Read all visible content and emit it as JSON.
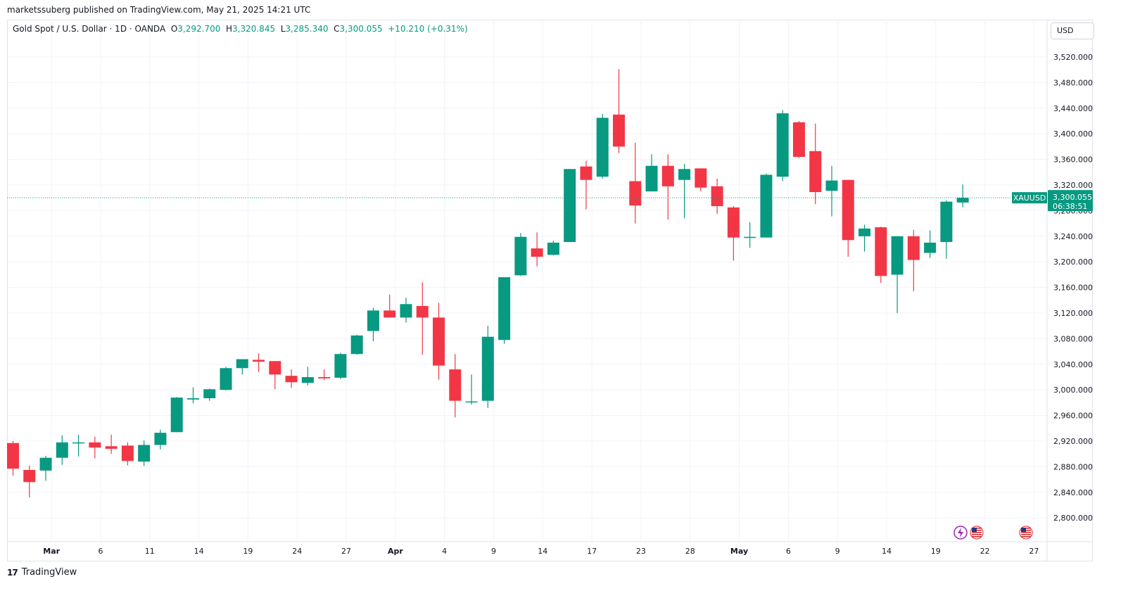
{
  "header": {
    "published": "marketssuberg published on TradingView.com, May 21, 2025 14:21 UTC"
  },
  "legend": {
    "symbol": "Gold Spot / U.S. Dollar · 1D · OANDA",
    "o_label": "O",
    "o_value": "3,292.700",
    "h_label": "H",
    "h_value": "3,320.845",
    "l_label": "L",
    "l_value": "3,285.340",
    "c_label": "C",
    "c_value": "3,300.055",
    "change": "+10.210 (+0.31%)"
  },
  "currency_button": "USD",
  "price_badge": {
    "symbol": "XAUUSD",
    "price": "3,300.055",
    "countdown": "06:38:51"
  },
  "brand": {
    "logo": "17",
    "name": "TradingView"
  },
  "colors": {
    "up": "#089981",
    "down": "#f23645",
    "grid": "#f0f3fa",
    "axis_text": "#131722"
  },
  "event_icons": [
    "lightning-icon",
    "us-flag-icon",
    "us-flag-icon"
  ],
  "chart_data": {
    "type": "candlestick",
    "ylim": [
      2770,
      3560
    ],
    "yticks": [
      "2,800.000",
      "2,840.000",
      "2,880.000",
      "2,920.000",
      "2,960.000",
      "3,000.000",
      "3,040.000",
      "3,080.000",
      "3,120.000",
      "3,160.000",
      "3,200.000",
      "3,240.000",
      "3,280.000",
      "3,320.000",
      "3,360.000",
      "3,400.000",
      "3,440.000",
      "3,480.000",
      "3,520.000"
    ],
    "ytick_values": [
      2800,
      2840,
      2880,
      2920,
      2960,
      3000,
      3040,
      3080,
      3120,
      3160,
      3200,
      3240,
      3280,
      3320,
      3360,
      3400,
      3440,
      3480,
      3520
    ],
    "xticks": [
      {
        "label": "Mar",
        "index": 2.35,
        "bold": true
      },
      {
        "label": "6",
        "index": 5.35
      },
      {
        "label": "11",
        "index": 8.35
      },
      {
        "label": "14",
        "index": 11.35
      },
      {
        "label": "19",
        "index": 14.35
      },
      {
        "label": "24",
        "index": 17.35
      },
      {
        "label": "27",
        "index": 20.35
      },
      {
        "label": "Apr",
        "index": 23.35,
        "bold": true
      },
      {
        "label": "4",
        "index": 26.35
      },
      {
        "label": "9",
        "index": 29.35
      },
      {
        "label": "14",
        "index": 32.35
      },
      {
        "label": "17",
        "index": 35.35
      },
      {
        "label": "23",
        "index": 38.35
      },
      {
        "label": "28",
        "index": 41.35
      },
      {
        "label": "May",
        "index": 44.35,
        "bold": true
      },
      {
        "label": "6",
        "index": 47.35
      },
      {
        "label": "9",
        "index": 50.35
      },
      {
        "label": "14",
        "index": 53.35
      },
      {
        "label": "19",
        "index": 56.35
      },
      {
        "label": "22",
        "index": 59.35
      },
      {
        "label": "27",
        "index": 62.35
      }
    ],
    "current_price": 3300.055,
    "candles": [
      {
        "o": 2917,
        "h": 2920,
        "l": 2866,
        "c": 2877
      },
      {
        "o": 2875,
        "h": 2882,
        "l": 2832,
        "c": 2856
      },
      {
        "o": 2874,
        "h": 2897,
        "l": 2858,
        "c": 2894
      },
      {
        "o": 2894,
        "h": 2929,
        "l": 2883,
        "c": 2918
      },
      {
        "o": 2917,
        "h": 2930,
        "l": 2896,
        "c": 2918
      },
      {
        "o": 2918,
        "h": 2927,
        "l": 2893,
        "c": 2910
      },
      {
        "o": 2912,
        "h": 2930,
        "l": 2900,
        "c": 2908
      },
      {
        "o": 2913,
        "h": 2918,
        "l": 2882,
        "c": 2889
      },
      {
        "o": 2888,
        "h": 2921,
        "l": 2881,
        "c": 2914
      },
      {
        "o": 2914,
        "h": 2938,
        "l": 2907,
        "c": 2933
      },
      {
        "o": 2934,
        "h": 2989,
        "l": 2934,
        "c": 2988
      },
      {
        "o": 2985,
        "h": 3004,
        "l": 2979,
        "c": 2987
      },
      {
        "o": 2987,
        "h": 3002,
        "l": 2983,
        "c": 3001
      },
      {
        "o": 3000,
        "h": 3036,
        "l": 2999,
        "c": 3034
      },
      {
        "o": 3034,
        "h": 3048,
        "l": 3024,
        "c": 3048
      },
      {
        "o": 3047,
        "h": 3057,
        "l": 3028,
        "c": 3044
      },
      {
        "o": 3045,
        "h": 3045,
        "l": 3001,
        "c": 3024
      },
      {
        "o": 3022,
        "h": 3032,
        "l": 3003,
        "c": 3012
      },
      {
        "o": 3011,
        "h": 3036,
        "l": 3007,
        "c": 3020
      },
      {
        "o": 3020,
        "h": 3032,
        "l": 3015,
        "c": 3018
      },
      {
        "o": 3019,
        "h": 3058,
        "l": 3017,
        "c": 3056
      },
      {
        "o": 3056,
        "h": 3086,
        "l": 3055,
        "c": 3085
      },
      {
        "o": 3092,
        "h": 3128,
        "l": 3076,
        "c": 3124
      },
      {
        "o": 3124,
        "h": 3149,
        "l": 3113,
        "c": 3113
      },
      {
        "o": 3113,
        "h": 3144,
        "l": 3105,
        "c": 3134
      },
      {
        "o": 3131,
        "h": 3168,
        "l": 3055,
        "c": 3113
      },
      {
        "o": 3113,
        "h": 3136,
        "l": 3016,
        "c": 3038
      },
      {
        "o": 3032,
        "h": 3056,
        "l": 2957,
        "c": 2983
      },
      {
        "o": 2982,
        "h": 3024,
        "l": 2977,
        "c": 2982
      },
      {
        "o": 2983,
        "h": 3100,
        "l": 2972,
        "c": 3083
      },
      {
        "o": 3078,
        "h": 3176,
        "l": 3072,
        "c": 3176
      },
      {
        "o": 3179,
        "h": 3245,
        "l": 3178,
        "c": 3239
      },
      {
        "o": 3221,
        "h": 3246,
        "l": 3193,
        "c": 3208
      },
      {
        "o": 3211,
        "h": 3233,
        "l": 3210,
        "c": 3230
      },
      {
        "o": 3231,
        "h": 3345,
        "l": 3231,
        "c": 3345
      },
      {
        "o": 3349,
        "h": 3358,
        "l": 3282,
        "c": 3328
      },
      {
        "o": 3333,
        "h": 3431,
        "l": 3330,
        "c": 3425
      },
      {
        "o": 3430,
        "h": 3501,
        "l": 3370,
        "c": 3380
      },
      {
        "o": 3326,
        "h": 3386,
        "l": 3260,
        "c": 3288
      },
      {
        "o": 3310,
        "h": 3368,
        "l": 3310,
        "c": 3350
      },
      {
        "o": 3350,
        "h": 3368,
        "l": 3266,
        "c": 3318
      },
      {
        "o": 3328,
        "h": 3353,
        "l": 3268,
        "c": 3345
      },
      {
        "o": 3346,
        "h": 3346,
        "l": 3310,
        "c": 3316
      },
      {
        "o": 3318,
        "h": 3330,
        "l": 3275,
        "c": 3287
      },
      {
        "o": 3285,
        "h": 3287,
        "l": 3202,
        "c": 3238
      },
      {
        "o": 3238,
        "h": 3262,
        "l": 3222,
        "c": 3239
      },
      {
        "o": 3238,
        "h": 3338,
        "l": 3238,
        "c": 3336
      },
      {
        "o": 3333,
        "h": 3437,
        "l": 3326,
        "c": 3432
      },
      {
        "o": 3418,
        "h": 3420,
        "l": 3362,
        "c": 3364
      },
      {
        "o": 3373,
        "h": 3416,
        "l": 3290,
        "c": 3309
      },
      {
        "o": 3311,
        "h": 3350,
        "l": 3271,
        "c": 3327
      },
      {
        "o": 3328,
        "h": 3328,
        "l": 3208,
        "c": 3234
      },
      {
        "o": 3240,
        "h": 3258,
        "l": 3216,
        "c": 3252
      },
      {
        "o": 3254,
        "h": 3255,
        "l": 3167,
        "c": 3178
      },
      {
        "o": 3180,
        "h": 3240,
        "l": 3120,
        "c": 3240
      },
      {
        "o": 3240,
        "h": 3250,
        "l": 3154,
        "c": 3203
      },
      {
        "o": 3214,
        "h": 3249,
        "l": 3206,
        "c": 3230
      },
      {
        "o": 3231,
        "h": 3296,
        "l": 3205,
        "c": 3294
      },
      {
        "o": 3292.7,
        "h": 3320.845,
        "l": 3285.34,
        "c": 3300.055
      }
    ]
  }
}
